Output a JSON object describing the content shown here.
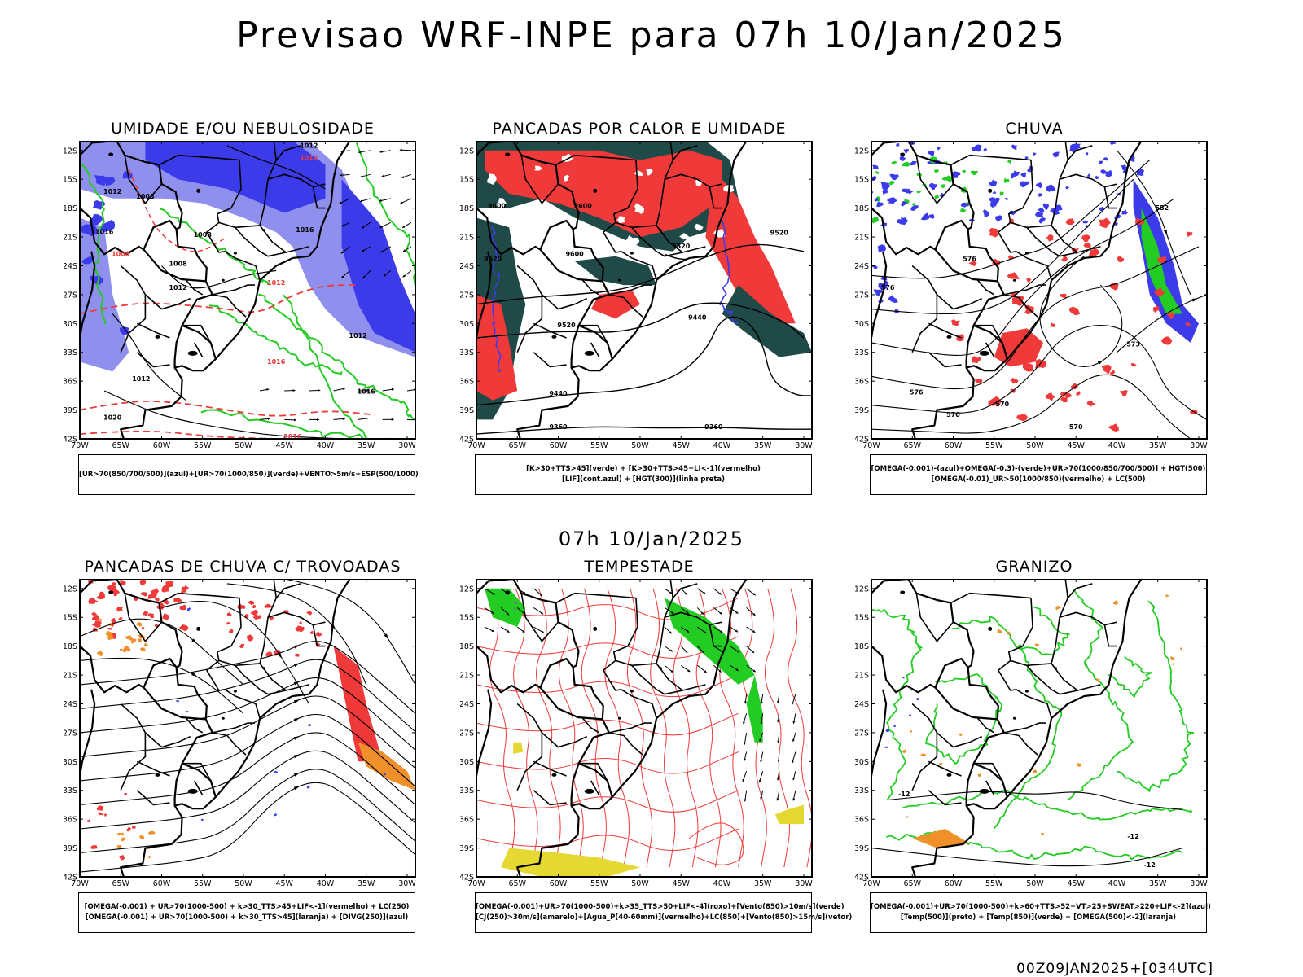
{
  "title": "Previsao WRF-INPE  para 07h 10/Jan/2025",
  "mid_title": "07h 10/Jan/2025",
  "footer": "00Z09JAN2025+[034UTC]",
  "axes": {
    "lat_labels": [
      "12S",
      "15S",
      "18S",
      "21S",
      "24S",
      "27S",
      "30S",
      "33S",
      "36S",
      "39S",
      "42S"
    ],
    "lon_labels": [
      "70W",
      "65W",
      "60W",
      "55W",
      "50W",
      "45W",
      "40W",
      "35W",
      "30W"
    ]
  },
  "colors": {
    "blue": "#3b3bea",
    "light_blue": "#8f8fee",
    "green": "#22cc22",
    "red": "#f03a3a",
    "dark_teal": "#1f4a48",
    "orange": "#f0902a",
    "yellow": "#e6d832",
    "purple": "#9a3ad8"
  },
  "panels": [
    {
      "title": "UMIDADE E/OU NEBULOSIDADE",
      "legend": [
        "[UR>70(850/700/500)](azul)+[UR>70(1000/850)](verde)+VENTO>5m/s+ESP(500/1000)"
      ],
      "contour_labels": [
        "1012",
        "1012",
        "1012",
        "1008",
        "1016",
        "1008",
        "1008",
        "1012",
        "1012",
        "1016",
        "1012",
        "1016",
        "1016",
        "1020",
        "1016",
        "1012",
        "1008"
      ]
    },
    {
      "title": "PANCADAS POR CALOR E UMIDADE",
      "legend": [
        "[K>30+TTS>45](verde) + [K>30+TTS>45+LI<-1](vermelho)",
        "[LIF](cont.azul) + [HGT(300)](linha preta)"
      ],
      "contour_labels": [
        "9600",
        "9600",
        "9600",
        "9520",
        "9520",
        "9520",
        "9440",
        "9440",
        "9360",
        "9360",
        "9520"
      ]
    },
    {
      "title": "CHUVA",
      "legend": [
        "[OMEGA(-0.001)-(azul)+OMEGA(-0.3)-(verde)+UR>70(1000/850/700/500)] + HGT(500)",
        "[OMEGA(-0.01)_UR>50(1000/850)(vermelho) + LC(500)"
      ],
      "contour_labels": [
        "582",
        "576",
        "576",
        "570",
        "576",
        "570",
        "573",
        "570"
      ]
    },
    {
      "title": "PANCADAS DE CHUVA C/ TROVOADAS",
      "legend": [
        "[OMEGA(-0.001) + UR>70(1000-500) + k>30_TTS>45+LIF<-1](vermelho) + LC(250)",
        "[OMEGA(-0.001) + UR>70(1000-500) + k>30_TTS>45](laranja) + [DIVG(250)](azul)"
      ],
      "contour_labels": []
    },
    {
      "title": "TEMPESTADE",
      "legend": [
        "[OMEGA(-0.001)+UR>70(1000-500)+k>35_TTS>50+LIF<-4](roxo)+[Vento(850)>10m/s](verde)",
        "[CJ(250)>30m/s](amarelo)+[Agua_P(40-60mm)](vermelho)+LC(850)+[Vento(850)>15m/s](vetor)"
      ],
      "contour_labels": []
    },
    {
      "title": "GRANIZO",
      "legend": [
        "[OMEGA(-0.001)+UR>70(1000-500)+k>60+TTS>52+VT>25+SWEAT>220+LIF<-2](azul)",
        "[Temp(500)](preto) + [Temp(850)](verde) + [OMEGA(500)<-2](laranja)"
      ],
      "contour_labels": [
        "-12",
        "-12",
        "-12"
      ]
    }
  ]
}
